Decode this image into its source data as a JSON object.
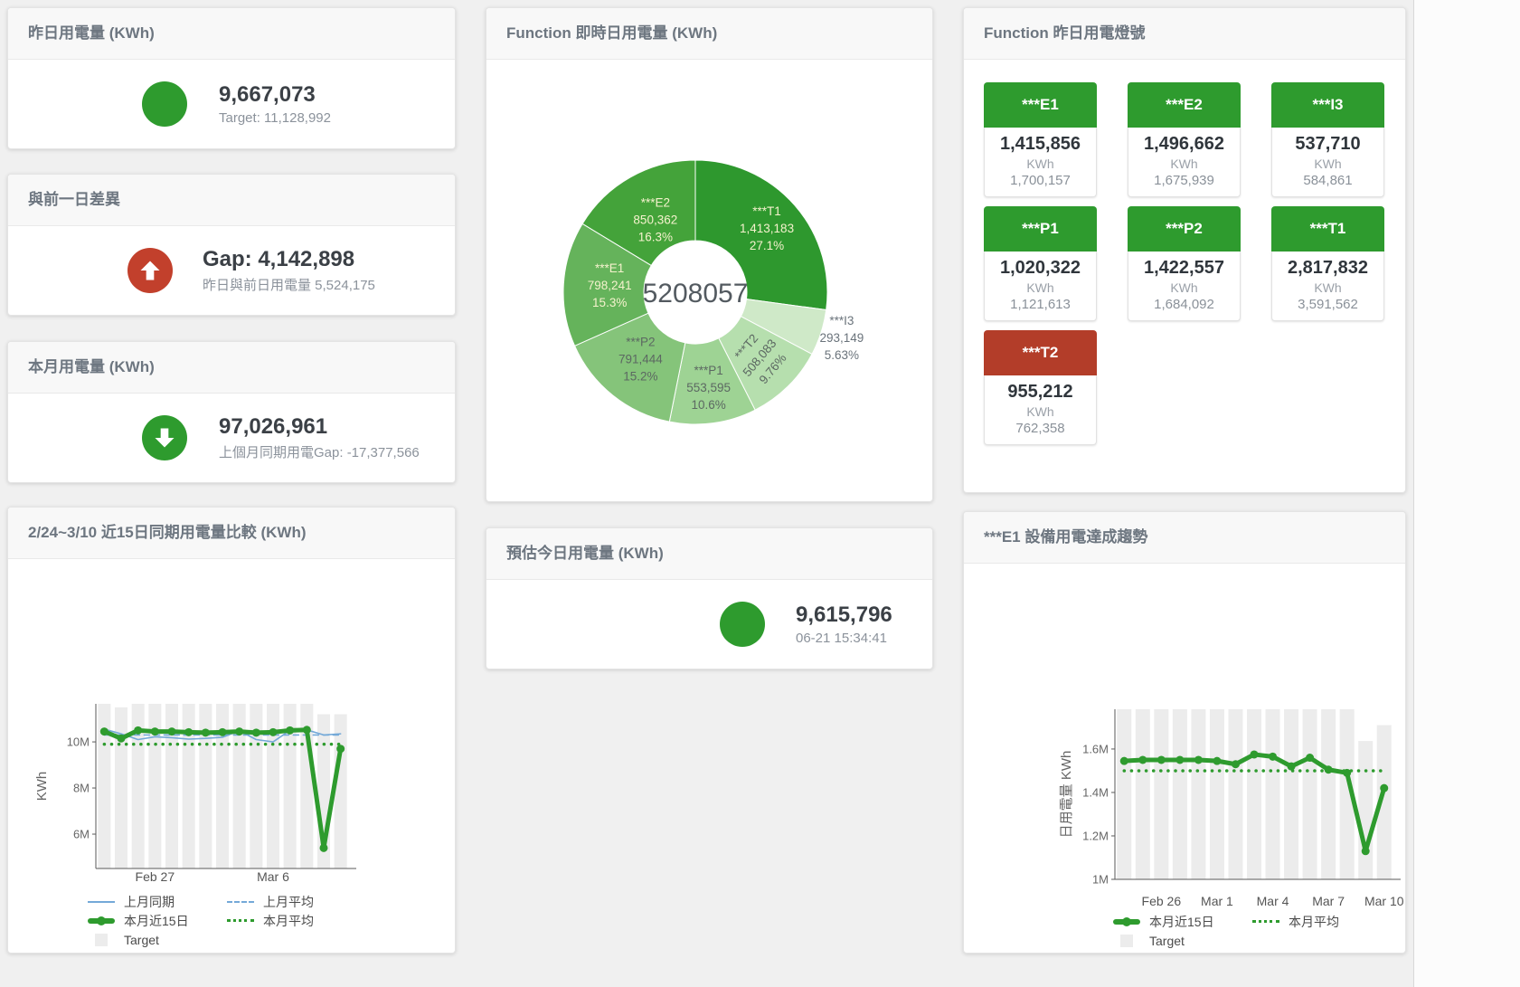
{
  "cards": {
    "yesterday": {
      "title": "昨日用電量 (KWh)",
      "value": "9,667,073",
      "subtitle": "Target: 11,128,992",
      "icon": "circle",
      "icon_color": "#2e9b2e"
    },
    "day_gap": {
      "title": "與前一日差異",
      "value": "Gap: 4,142,898",
      "subtitle": "昨日與前日用電量 5,524,175",
      "icon": "arrow-up-circle",
      "icon_color": "#c2402c"
    },
    "month": {
      "title": "本月用電量 (KWh)",
      "value": "97,026,961",
      "subtitle": "上個月同期用電Gap: -17,377,566",
      "icon": "arrow-down-circle",
      "icon_color": "#2e9b2e"
    },
    "estimate": {
      "title": "預估今日用電量 (KWh)",
      "value": "9,615,796",
      "subtitle": "06-21 15:34:41",
      "icon": "circle",
      "icon_color": "#2e9b2e"
    },
    "realtime": {
      "title": "Function 即時日用電量 (KWh)"
    },
    "lights": {
      "title": "Function 昨日用電燈號"
    },
    "compare": {
      "title": "2/24~3/10 近15日同期用電量比較 (KWh)"
    },
    "trend": {
      "title": "***E1 設備用電達成趨勢"
    }
  },
  "lights": [
    {
      "id": "E1",
      "label": "***E1",
      "value": "1,415,856",
      "unit": "KWh",
      "target": "1,700,157",
      "status_color": "#2e9b2e"
    },
    {
      "id": "E2",
      "label": "***E2",
      "value": "1,496,662",
      "unit": "KWh",
      "target": "1,675,939",
      "status_color": "#2e9b2e"
    },
    {
      "id": "I3",
      "label": "***I3",
      "value": "537,710",
      "unit": "KWh",
      "target": "584,861",
      "status_color": "#2e9b2e"
    },
    {
      "id": "P1",
      "label": "***P1",
      "value": "1,020,322",
      "unit": "KWh",
      "target": "1,121,613",
      "status_color": "#2e9b2e"
    },
    {
      "id": "P2",
      "label": "***P2",
      "value": "1,422,557",
      "unit": "KWh",
      "target": "1,684,092",
      "status_color": "#2e9b2e"
    },
    {
      "id": "T1",
      "label": "***T1",
      "value": "2,817,832",
      "unit": "KWh",
      "target": "3,591,562",
      "status_color": "#2e9b2e"
    },
    {
      "id": "T2",
      "label": "***T2",
      "value": "955,212",
      "unit": "KWh",
      "target": "762,358",
      "status_color": "#b33d29"
    }
  ],
  "chart_data": [
    {
      "type": "pie",
      "title": "Function 即時日用電量 (KWh)",
      "center_label": "5208057",
      "total": 5208057,
      "slices": [
        {
          "name": "***T1",
          "value": 1413183,
          "value_label": "1,413,183",
          "pct_label": "27.1%",
          "color": "#2e982e",
          "label": "light",
          "label_r": 105
        },
        {
          "name": "***I3",
          "value": 293149,
          "value_label": "293,149",
          "pct_label": "5.63%",
          "color": "#cfe9c8",
          "label": "outside",
          "label_r": 170
        },
        {
          "name": "***T2",
          "value": 508083,
          "value_label": "508,083",
          "pct_label": "9.76%",
          "color": "#b6dfae",
          "label": "dark",
          "label_r": 103,
          "label_rotate": -50
        },
        {
          "name": "***P1",
          "value": 553595,
          "value_label": "553,595",
          "pct_label": "10.6%",
          "color": "#9ed394",
          "label": "dark",
          "label_r": 108
        },
        {
          "name": "***P2",
          "value": 791444,
          "value_label": "791,444",
          "pct_label": "15.2%",
          "color": "#85c47a",
          "label": "dark",
          "label_r": 97
        },
        {
          "name": "***E1",
          "value": 798241,
          "value_label": "798,241",
          "pct_label": "15.3%",
          "color": "#65b35b",
          "label": "light",
          "label_r": 95
        },
        {
          "name": "***E2",
          "value": 850362,
          "value_label": "850,362",
          "pct_label": "16.3%",
          "color": "#44a33a",
          "label": "light",
          "label_r": 90
        }
      ]
    },
    {
      "type": "line",
      "title": "2/24~3/10 近15日同期用電量比較 (KWh)",
      "ylabel": "KWh",
      "unit": "millions KWh",
      "ylim": [
        4.51,
        11.65
      ],
      "yticks": [
        {
          "v": 6,
          "label": "6M"
        },
        {
          "v": 8,
          "label": "8M"
        },
        {
          "v": 10,
          "label": "10M"
        }
      ],
      "xticks": [
        {
          "i": 3,
          "label": "Feb 27"
        },
        {
          "i": 10,
          "label": "Mar 6"
        }
      ],
      "grid": false,
      "series": [
        {
          "name": "Target",
          "kind": "bar",
          "color": "#ececec",
          "values": [
            11.65,
            11.5,
            11.65,
            11.65,
            11.65,
            11.65,
            11.65,
            11.65,
            11.65,
            11.65,
            11.65,
            11.65,
            11.65,
            11.2,
            11.2
          ]
        },
        {
          "name": "上月同期",
          "kind": "line",
          "dash": "solid",
          "width": 1.6,
          "color": "#74a9d8",
          "values": [
            10.55,
            10.35,
            10.1,
            10.22,
            10.18,
            10.12,
            10.15,
            10.2,
            10.48,
            10.1,
            10.0,
            10.5,
            10.52,
            10.3,
            10.35
          ]
        },
        {
          "name": "上月平均",
          "kind": "line",
          "dash": "dashed",
          "width": 1.6,
          "color": "#74a9d8",
          "values": [
            10.3,
            10.3,
            10.3,
            10.3,
            10.3,
            10.3,
            10.3,
            10.3,
            10.3,
            10.3,
            10.3,
            10.3,
            10.3,
            10.3,
            10.3
          ]
        },
        {
          "name": "本月近15日",
          "kind": "line",
          "dash": "solid",
          "width": 5,
          "color": "#2e9b2e",
          "markers": true,
          "values": [
            10.45,
            10.15,
            10.5,
            10.45,
            10.45,
            10.42,
            10.4,
            10.42,
            10.45,
            10.4,
            10.42,
            10.5,
            10.52,
            5.4,
            9.7
          ]
        },
        {
          "name": "本月平均",
          "kind": "line",
          "dash": "dotted",
          "width": 3.5,
          "color": "#2e9b2e",
          "values": [
            9.9,
            9.9,
            9.9,
            9.9,
            9.9,
            9.9,
            9.9,
            9.9,
            9.9,
            9.9,
            9.9,
            9.9,
            9.9,
            9.9,
            9.9
          ]
        }
      ],
      "legend": [
        {
          "label": "上月同期",
          "swatch": "line",
          "color": "#74a9d8"
        },
        {
          "label": "上月平均",
          "swatch": "dashed",
          "color": "#74a9d8"
        },
        {
          "label": "本月近15日",
          "swatch": "thick",
          "color": "#2e9b2e"
        },
        {
          "label": "本月平均",
          "swatch": "dotted",
          "color": "#2e9b2e"
        },
        {
          "label": "Target",
          "swatch": "square",
          "color": "#ececec"
        }
      ]
    },
    {
      "type": "line",
      "title": "***E1 設備用電達成趨勢",
      "ylabel": "日用電量 KWh",
      "unit": "millions KWh",
      "ylim": [
        1.0,
        1.783
      ],
      "yticks": [
        {
          "v": 1,
          "label": "1M"
        },
        {
          "v": 1.2,
          "label": "1.2M"
        },
        {
          "v": 1.4,
          "label": "1.4M"
        },
        {
          "v": 1.6,
          "label": "1.6M"
        }
      ],
      "xticks": [
        {
          "i": 2,
          "label": "Feb 26"
        },
        {
          "i": 5,
          "label": "Mar 1"
        },
        {
          "i": 8,
          "label": "Mar 4"
        },
        {
          "i": 11,
          "label": "Mar 7"
        },
        {
          "i": 14,
          "label": "Mar 10"
        }
      ],
      "grid": false,
      "series": [
        {
          "name": "Target",
          "kind": "bar",
          "color": "#ececec",
          "values": [
            1.783,
            1.783,
            1.783,
            1.783,
            1.783,
            1.783,
            1.783,
            1.783,
            1.783,
            1.783,
            1.783,
            1.783,
            1.783,
            1.637,
            1.71
          ]
        },
        {
          "name": "本月近15日",
          "kind": "line",
          "dash": "solid",
          "width": 5,
          "color": "#2e9b2e",
          "markers": true,
          "values": [
            1.545,
            1.55,
            1.55,
            1.55,
            1.55,
            1.545,
            1.53,
            1.575,
            1.565,
            1.52,
            1.56,
            1.505,
            1.49,
            1.13,
            1.42
          ]
        },
        {
          "name": "本月平均",
          "kind": "line",
          "dash": "dotted",
          "width": 3.5,
          "color": "#2e9b2e",
          "values": [
            1.5,
            1.5,
            1.5,
            1.5,
            1.5,
            1.5,
            1.5,
            1.5,
            1.5,
            1.5,
            1.5,
            1.5,
            1.5,
            1.5,
            1.5
          ]
        }
      ],
      "legend": [
        {
          "label": "本月近15日",
          "swatch": "thick",
          "color": "#2e9b2e"
        },
        {
          "label": "本月平均",
          "swatch": "dotted",
          "color": "#2e9b2e"
        },
        {
          "label": "Target",
          "swatch": "square",
          "color": "#ececec"
        }
      ]
    }
  ]
}
